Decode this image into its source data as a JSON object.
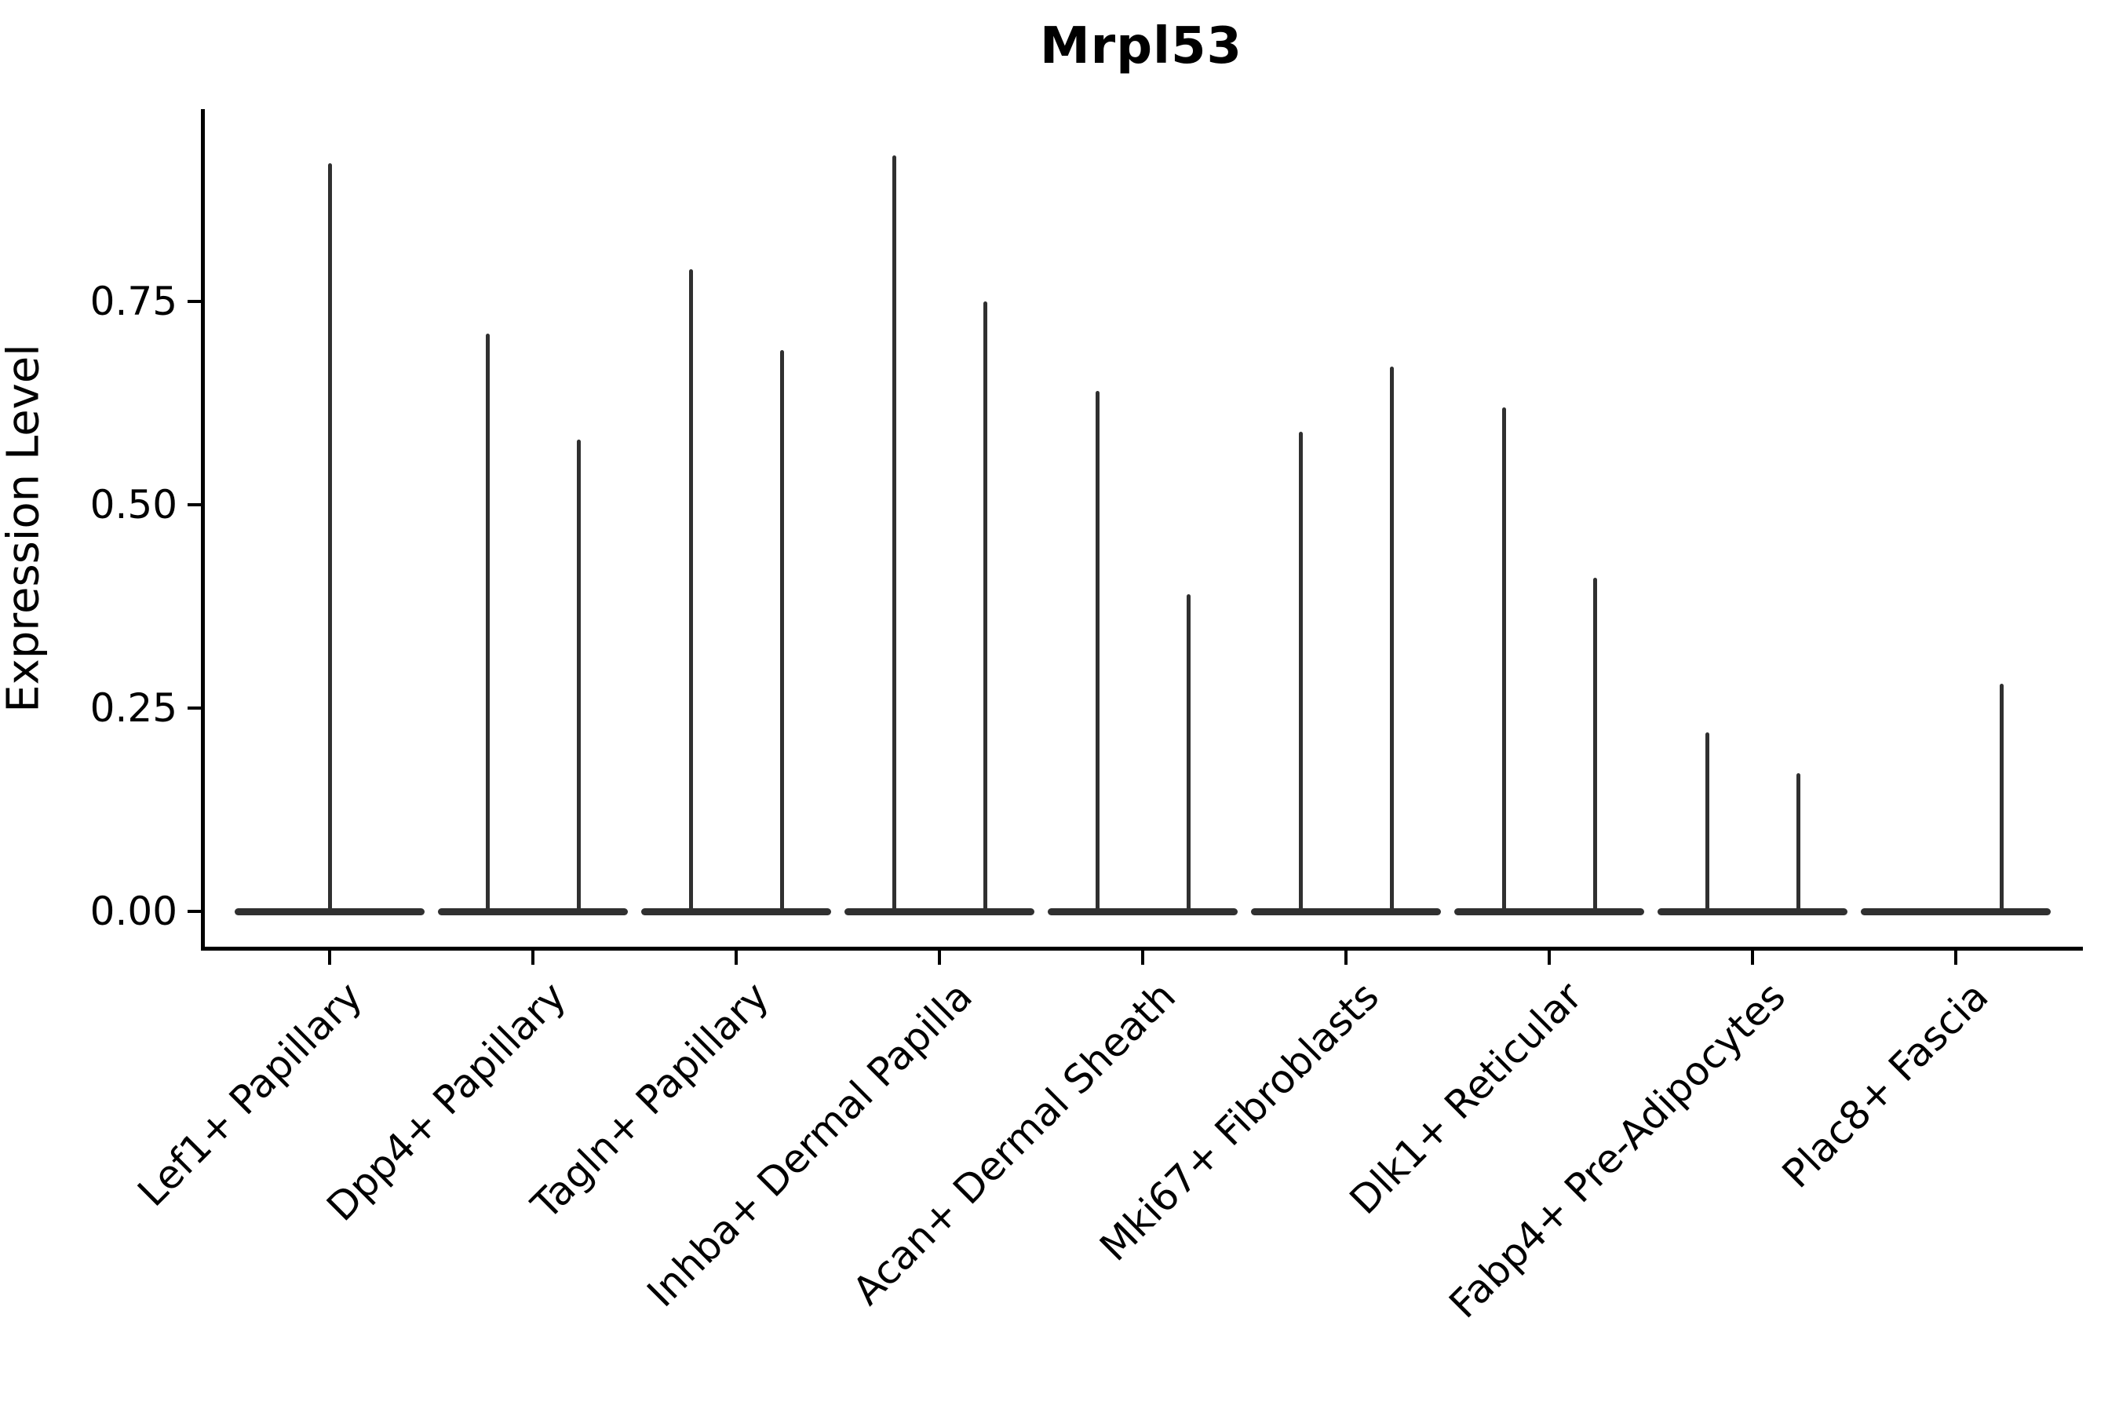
{
  "title": "Mrpl53",
  "y_axis": {
    "label": "Expression Level",
    "tick_labels": [
      "0.00",
      "0.25",
      "0.50",
      "0.75"
    ],
    "tick_values": [
      0,
      0.25,
      0.5,
      0.75
    ]
  },
  "x_axis": {
    "categories": [
      "Lef1+ Papillary",
      "Dpp4+ Papillary",
      "Tagln+ Papillary",
      "Inhba+ Dermal Papilla",
      "Acan+ Dermal Sheath",
      "Mki67+ Fibroblasts",
      "Dlk1+ Reticular",
      "Fabp4+ Pre-Adipocytes",
      "Plac8+ Fascia"
    ]
  },
  "chart_data": {
    "type": "violin",
    "title": "Mrpl53",
    "xlabel": "",
    "ylabel": "Expression Level",
    "ylim": [
      0,
      0.98
    ],
    "yticks": [
      0,
      0.25,
      0.5,
      0.75
    ],
    "grid": false,
    "legend": "none",
    "description": "Violin plot of Mrpl53 expression per fibroblast cluster; each violin is collapsed into a wide flat bar at expression 0 with one or two narrow vertical density spikes rising to the maximum expression value of that group.",
    "categories": [
      "Lef1+ Papillary",
      "Dpp4+ Papillary",
      "Tagln+ Papillary",
      "Inhba+ Dermal Papilla",
      "Acan+ Dermal Sheath",
      "Mki67+ Fibroblasts",
      "Dlk1+ Reticular",
      "Fabp4+ Pre-Adipocytes",
      "Plac8+ Fascia"
    ],
    "violins": [
      {
        "category": "Lef1+ Papillary",
        "spikes": [
          {
            "position": "center",
            "max": 0.92
          }
        ]
      },
      {
        "category": "Dpp4+ Papillary",
        "spikes": [
          {
            "position": "left",
            "max": 0.71
          },
          {
            "position": "right",
            "max": 0.58
          }
        ]
      },
      {
        "category": "Tagln+ Papillary",
        "spikes": [
          {
            "position": "left",
            "max": 0.79
          },
          {
            "position": "right",
            "max": 0.69
          }
        ]
      },
      {
        "category": "Inhba+ Dermal Papilla",
        "spikes": [
          {
            "position": "left",
            "max": 0.93
          },
          {
            "position": "right",
            "max": 0.75
          }
        ]
      },
      {
        "category": "Acan+ Dermal Sheath",
        "spikes": [
          {
            "position": "left",
            "max": 0.64
          },
          {
            "position": "right",
            "max": 0.39
          }
        ]
      },
      {
        "category": "Mki67+ Fibroblasts",
        "spikes": [
          {
            "position": "left",
            "max": 0.59
          },
          {
            "position": "right",
            "max": 0.67
          }
        ]
      },
      {
        "category": "Dlk1+ Reticular",
        "spikes": [
          {
            "position": "left",
            "max": 0.62
          },
          {
            "position": "right",
            "max": 0.41
          }
        ]
      },
      {
        "category": "Fabp4+ Pre-Adipocytes",
        "spikes": [
          {
            "position": "left",
            "max": 0.22
          },
          {
            "position": "right",
            "max": 0.17
          }
        ]
      },
      {
        "category": "Plac8+ Fascia",
        "spikes": [
          {
            "position": "right",
            "max": 0.28
          }
        ]
      }
    ]
  },
  "colors": {
    "violin": "#303030",
    "axis": "#000000",
    "background": "#ffffff"
  }
}
